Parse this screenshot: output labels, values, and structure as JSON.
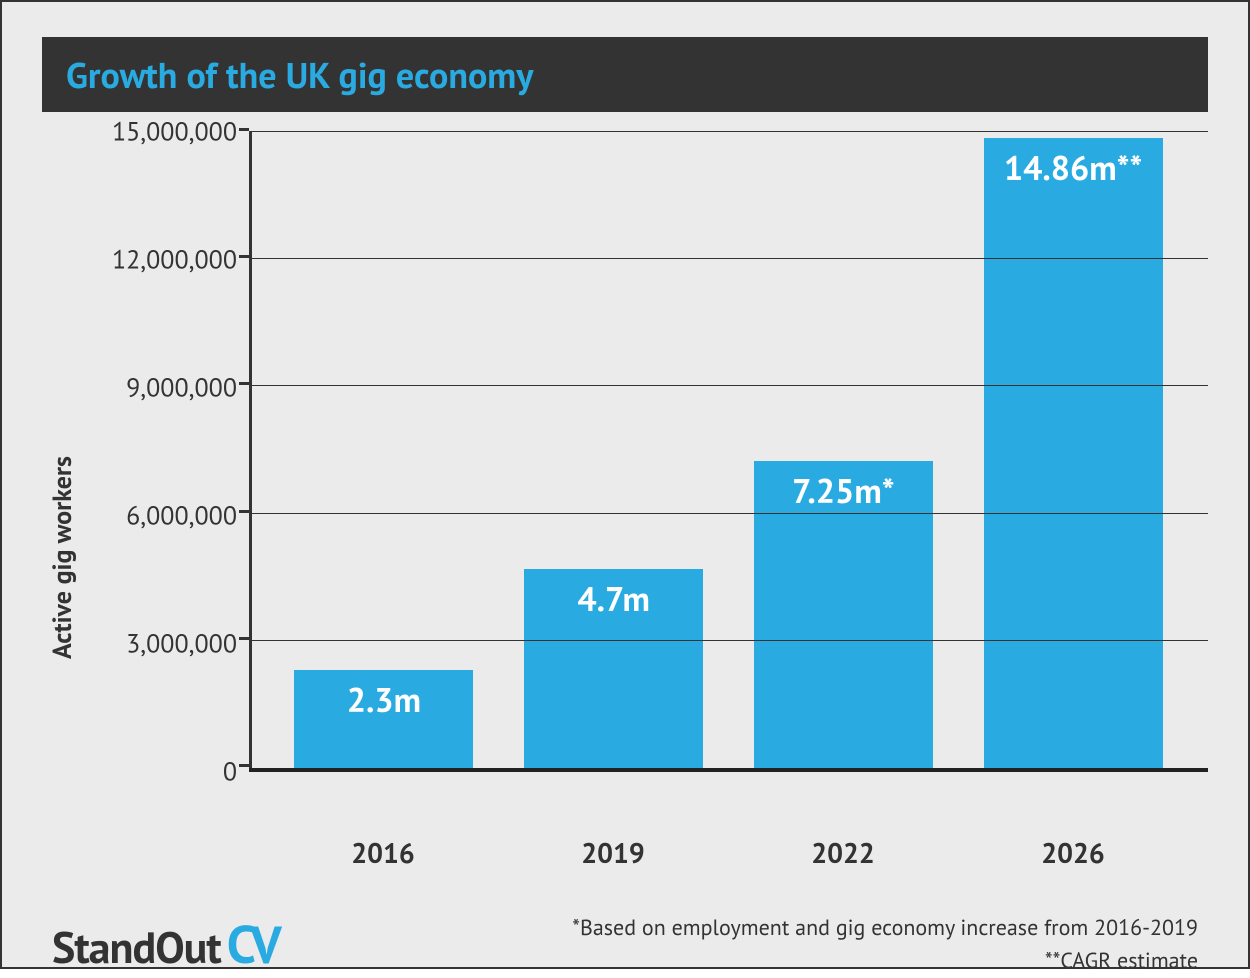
{
  "title": "Growth of the UK gig economy",
  "chart": {
    "type": "bar",
    "ylabel": "Active gig workers",
    "ylim": [
      0,
      15000000
    ],
    "yticks": [
      0,
      3000000,
      6000000,
      9000000,
      12000000,
      15000000
    ],
    "ytick_labels": [
      "0",
      "3,000,000",
      "6,000,000",
      "9,000,000",
      "12,000,000",
      "15,000,000"
    ],
    "categories": [
      "2016",
      "2019",
      "2022",
      "2026"
    ],
    "values": [
      2300000,
      4700000,
      7250000,
      14860000
    ],
    "bar_labels": [
      "2.3m",
      "4.7m",
      "7.25m*",
      "14.86m**"
    ],
    "bar_color": "#29abe2",
    "axis_color": "#333333",
    "grid_color": "#333333",
    "background_color": "#ebebeb",
    "title_bg": "#333333",
    "title_color": "#29abe2",
    "title_fontsize": 36,
    "ylabel_fontsize": 26,
    "tick_fontsize": 26,
    "xlabel_fontsize": 28,
    "barlabel_fontsize": 34,
    "barlabel_color": "#ffffff",
    "bar_width": 0.78
  },
  "logo": {
    "seg1": "StandOut",
    "seg2": "CV",
    "seg1_color": "#333333",
    "seg2_color": "#29abe2"
  },
  "notes": {
    "line1": "*Based on employment and gig economy increase from 2016-2019",
    "line2": "**CAGR estimate"
  }
}
